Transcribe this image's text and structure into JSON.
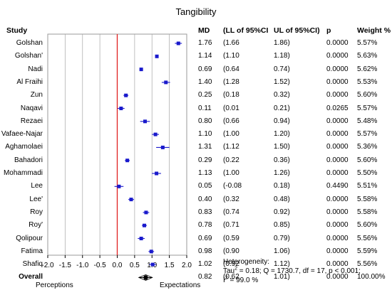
{
  "chart_data": {
    "type": "forest",
    "title": "Tangibility",
    "columns": {
      "study": "Study",
      "md": "MD",
      "ll": "(LL of 95%CI",
      "ul": "UL of 95%CI)",
      "p": "p",
      "weight": "Weight %"
    },
    "rows": [
      {
        "study": "Golshan",
        "md": 1.76,
        "md_text": "1.76",
        "ll": 1.66,
        "ll_text": "(1.66",
        "ul": 1.86,
        "ul_text": "1.86)",
        "p": "0.0000",
        "weight": "5.57%"
      },
      {
        "study": "Golshan'",
        "md": 1.14,
        "md_text": "1.14",
        "ll": 1.1,
        "ll_text": "(1.10",
        "ul": 1.18,
        "ul_text": "1.18)",
        "p": "0.0000",
        "weight": "5.63%"
      },
      {
        "study": "Nadi",
        "md": 0.69,
        "md_text": "0.69",
        "ll": 0.64,
        "ll_text": "(0.64",
        "ul": 0.74,
        "ul_text": "0.74)",
        "p": "0.0000",
        "weight": "5.62%"
      },
      {
        "study": "Al Fraihi",
        "md": 1.4,
        "md_text": "1.40",
        "ll": 1.28,
        "ll_text": "(1.28",
        "ul": 1.52,
        "ul_text": "1.52)",
        "p": "0.0000",
        "weight": "5.53%"
      },
      {
        "study": "Zun",
        "md": 0.25,
        "md_text": "0.25",
        "ll": 0.18,
        "ll_text": "(0.18",
        "ul": 0.32,
        "ul_text": "0.32)",
        "p": "0.0000",
        "weight": "5.60%"
      },
      {
        "study": "Naqavi",
        "md": 0.11,
        "md_text": "0.11",
        "ll": 0.01,
        "ll_text": "(0.01",
        "ul": 0.21,
        "ul_text": "0.21)",
        "p": "0.0265",
        "weight": "5.57%"
      },
      {
        "study": "Rezaei",
        "md": 0.8,
        "md_text": "0.80",
        "ll": 0.66,
        "ll_text": "(0.66",
        "ul": 0.94,
        "ul_text": "0.94)",
        "p": "0.0000",
        "weight": "5.48%"
      },
      {
        "study": "Vafaee-Najar",
        "md": 1.1,
        "md_text": "1.10",
        "ll": 1.0,
        "ll_text": "(1.00",
        "ul": 1.2,
        "ul_text": "1.20)",
        "p": "0.0000",
        "weight": "5.57%"
      },
      {
        "study": "Aghamolaei",
        "md": 1.31,
        "md_text": "1.31",
        "ll": 1.12,
        "ll_text": "(1.12",
        "ul": 1.5,
        "ul_text": "1.50)",
        "p": "0.0000",
        "weight": "5.36%"
      },
      {
        "study": "Bahadori",
        "md": 0.29,
        "md_text": "0.29",
        "ll": 0.22,
        "ll_text": "(0.22",
        "ul": 0.36,
        "ul_text": "0.36)",
        "p": "0.0000",
        "weight": "5.60%"
      },
      {
        "study": "Mohammadi",
        "md": 1.13,
        "md_text": "1.13",
        "ll": 1.0,
        "ll_text": "(1.00",
        "ul": 1.26,
        "ul_text": "1.26)",
        "p": "0.0000",
        "weight": "5.50%"
      },
      {
        "study": "Lee",
        "md": 0.05,
        "md_text": "0.05",
        "ll": -0.08,
        "ll_text": "(-0.08",
        "ul": 0.18,
        "ul_text": "0.18)",
        "p": "0.4490",
        "weight": "5.51%"
      },
      {
        "study": "Lee'",
        "md": 0.4,
        "md_text": "0.40",
        "ll": 0.32,
        "ll_text": "(0.32",
        "ul": 0.48,
        "ul_text": "0.48)",
        "p": "0.0000",
        "weight": "5.58%"
      },
      {
        "study": "Roy",
        "md": 0.83,
        "md_text": "0.83",
        "ll": 0.74,
        "ll_text": "(0.74",
        "ul": 0.92,
        "ul_text": "0.92)",
        "p": "0.0000",
        "weight": "5.58%"
      },
      {
        "study": "Roy'",
        "md": 0.78,
        "md_text": "0.78",
        "ll": 0.71,
        "ll_text": "(0.71",
        "ul": 0.85,
        "ul_text": "0.85)",
        "p": "0.0000",
        "weight": "5.60%"
      },
      {
        "study": "Qolipour",
        "md": 0.69,
        "md_text": "0.69",
        "ll": 0.59,
        "ll_text": "(0.59",
        "ul": 0.79,
        "ul_text": "0.79)",
        "p": "0.0000",
        "weight": "5.56%"
      },
      {
        "study": "Fatima",
        "md": 0.98,
        "md_text": "0.98",
        "ll": 0.9,
        "ll_text": "(0.90",
        "ul": 1.06,
        "ul_text": "1.06)",
        "p": "0.0000",
        "weight": "5.59%"
      },
      {
        "study": "Shafiq",
        "md": 1.02,
        "md_text": "1.02",
        "ll": 0.92,
        "ll_text": "(0.92",
        "ul": 1.12,
        "ul_text": "1.12)",
        "p": "0.0000",
        "weight": "5.56%"
      }
    ],
    "overall": {
      "study": "Overall",
      "md": 0.82,
      "md_text": "0.82",
      "ll": 0.62,
      "ll_text": "(0.62",
      "ul": 1.01,
      "ul_text": "1.01)",
      "p": "0.0000",
      "weight": "100.00%"
    },
    "xlim": [
      -2.0,
      2.0
    ],
    "xticks": [
      -2.0,
      -1.5,
      -1.0,
      -0.5,
      0.0,
      0.5,
      1.0,
      1.5,
      2.0
    ],
    "xtick_labels": [
      "-2.0",
      "-1.5",
      "-1.0",
      "-0.5",
      "0.0",
      "0.5",
      "1.0",
      "1.5",
      "2.0"
    ],
    "reference_line": 0,
    "grid": true,
    "x_left_label": "Perceptions",
    "x_right_label": "Expectations",
    "heterogeneity": {
      "heading": "Heterogeneity:",
      "tau_prefix": "Tau",
      "tau_rest": " = 0.18; Q = 1730.7, df = 17, p < 0.001;",
      "i_prefix": "I",
      "i_rest": " = 99.0 %",
      "sup": "2"
    },
    "colors": {
      "study_marker": "#1a1acc",
      "overall_marker": "#000000",
      "reference_line": "#e02020",
      "grid": "#b0b0b0",
      "frame": "#9a9a9a"
    }
  }
}
